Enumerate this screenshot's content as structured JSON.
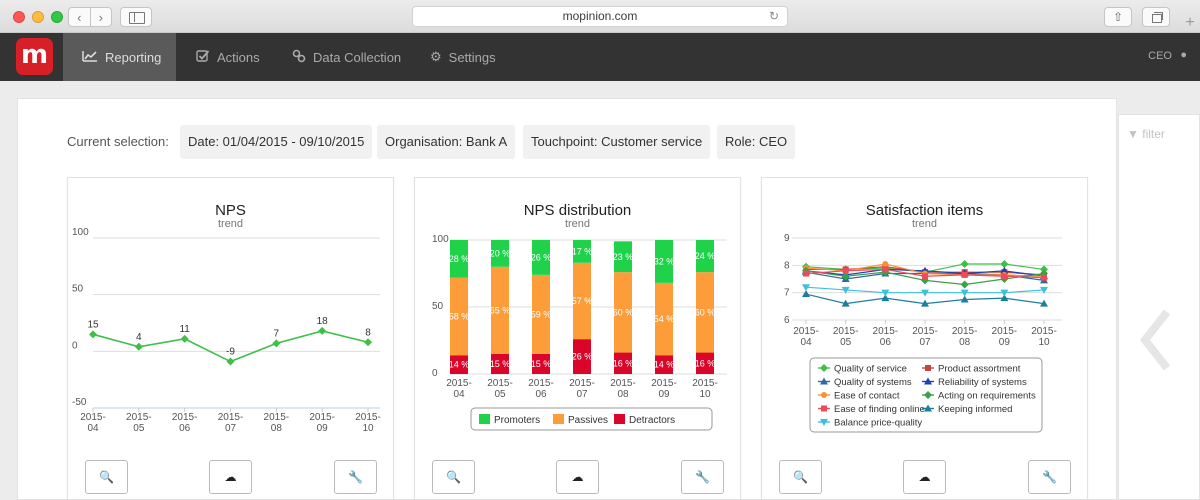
{
  "browser": {
    "url": "mopinion.com",
    "back_icon": "chevron-left-icon",
    "forward_icon": "chevron-right-icon"
  },
  "app": {
    "logo_letter": "m",
    "brand_color": "#d61f26",
    "nav": [
      {
        "label": "Reporting",
        "icon": "line-chart-icon",
        "active": true
      },
      {
        "label": "Actions",
        "icon": "checkbox-icon",
        "active": false
      },
      {
        "label": "Data Collection",
        "icon": "link-icon",
        "active": false
      },
      {
        "label": "Settings",
        "icon": "gear-icon",
        "active": false
      }
    ],
    "user": "CEO"
  },
  "filter": {
    "label": "filter"
  },
  "selection": {
    "label": "Current selection:",
    "date": "Date: 01/04/2015 - 09/10/2015",
    "organisation": "Organisation: Bank A",
    "touchpoint": "Touchpoint: Customer service",
    "role": "Role: CEO"
  },
  "cards": [
    {
      "title": "NPS",
      "subtitle": "trend"
    },
    {
      "title": "NPS distribution",
      "subtitle": "trend"
    },
    {
      "title": "Satisfaction items",
      "subtitle": "trend"
    }
  ],
  "chart_data": [
    {
      "type": "line",
      "title": "NPS",
      "subtitle": "trend",
      "categories": [
        "2015-04",
        "2015-05",
        "2015-06",
        "2015-07",
        "2015-08",
        "2015-09",
        "2015-10"
      ],
      "values": [
        15,
        4,
        11,
        -9,
        7,
        18,
        8
      ],
      "yticks": [
        100,
        50,
        0,
        -50
      ],
      "ylim": [
        -50,
        100
      ],
      "color": "#3fbf4a"
    },
    {
      "type": "bar",
      "stacked": true,
      "title": "NPS distribution",
      "subtitle": "trend",
      "categories": [
        "2015-04",
        "2015-05",
        "2015-06",
        "2015-07",
        "2015-08",
        "2015-09",
        "2015-10"
      ],
      "yticks": [
        100,
        50,
        0
      ],
      "ylim": [
        0,
        100
      ],
      "series": [
        {
          "name": "Promoters",
          "color": "#1fd24a",
          "values": [
            28,
            20,
            26,
            17,
            23,
            32,
            24
          ],
          "labels": [
            "28 %",
            "20 %",
            "26 %",
            "17 %",
            "23 %",
            "32 %",
            "24 %"
          ]
        },
        {
          "name": "Passives",
          "color": "#fd9d3a",
          "values": [
            58,
            65,
            59,
            57,
            60,
            54,
            60
          ],
          "labels": [
            "58 %",
            "65 %",
            "59 %",
            "57 %",
            "60 %",
            "54 %",
            "60 %"
          ]
        },
        {
          "name": "Detractors",
          "color": "#d9062a",
          "values": [
            14,
            15,
            15,
            26,
            16,
            14,
            16
          ],
          "labels": [
            "14 %",
            "15 %",
            "15 %",
            "26 %",
            "16 %",
            "14 %",
            "16 %"
          ]
        }
      ],
      "legend_position": "bottom"
    },
    {
      "type": "line",
      "title": "Satisfaction items",
      "subtitle": "trend",
      "categories": [
        "2015-04",
        "2015-05",
        "2015-06",
        "2015-07",
        "2015-08",
        "2015-09",
        "2015-10"
      ],
      "yticks": [
        9,
        8,
        7,
        6
      ],
      "ylim": [
        6,
        9
      ],
      "series": [
        {
          "name": "Quality of service",
          "color": "#3fbf4a",
          "marker": "diamond",
          "values": [
            7.95,
            7.85,
            7.9,
            7.75,
            8.05,
            8.05,
            7.85
          ]
        },
        {
          "name": "Product assortment",
          "color": "#c9423e",
          "marker": "square",
          "values": [
            7.85,
            7.85,
            7.95,
            7.75,
            7.75,
            7.75,
            7.65
          ]
        },
        {
          "name": "Quality of systems",
          "color": "#2e6ba4",
          "marker": "triangle",
          "values": [
            7.75,
            7.5,
            7.7,
            7.7,
            7.7,
            7.65,
            7.45
          ]
        },
        {
          "name": "Reliability of systems",
          "color": "#1f3fb4",
          "marker": "triangle",
          "values": [
            7.8,
            7.65,
            7.85,
            7.8,
            7.7,
            7.8,
            7.6
          ]
        },
        {
          "name": "Ease of contact",
          "color": "#f7922f",
          "marker": "circle",
          "values": [
            7.9,
            7.8,
            8.05,
            7.7,
            7.65,
            7.65,
            7.6
          ]
        },
        {
          "name": "Acting on requirements",
          "color": "#36a347",
          "marker": "diamond",
          "values": [
            7.8,
            7.6,
            7.75,
            7.45,
            7.3,
            7.5,
            7.7
          ]
        },
        {
          "name": "Ease of finding online",
          "color": "#ee4a5a",
          "marker": "square",
          "values": [
            7.7,
            7.8,
            7.85,
            7.6,
            7.65,
            7.6,
            7.55
          ]
        },
        {
          "name": "Keeping informed",
          "color": "#1c7f9a",
          "marker": "triangle",
          "values": [
            6.95,
            6.6,
            6.8,
            6.6,
            6.75,
            6.8,
            6.6
          ]
        },
        {
          "name": "Balance price-quality",
          "color": "#3ec0de",
          "marker": "triangle-down",
          "values": [
            7.2,
            7.1,
            7.0,
            7.0,
            7.0,
            7.0,
            7.1
          ]
        }
      ],
      "legend_position": "bottom"
    }
  ]
}
